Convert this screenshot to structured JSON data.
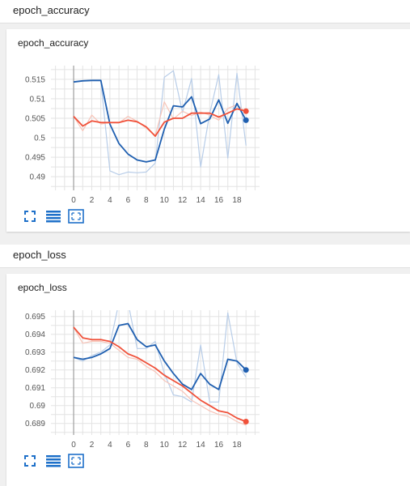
{
  "sections": [
    {
      "header": "epoch_accuracy",
      "card_title": "epoch_accuracy"
    },
    {
      "header": "epoch_loss",
      "card_title": "epoch_loss"
    }
  ],
  "colors": {
    "dark_blue": "#1f5fb0",
    "light_blue": "#b8cde8",
    "red": "#f0513a",
    "light_red": "#f7c4b8",
    "grid": "#e3e3e3",
    "toolbar_icon": "#1e70c9"
  },
  "toolbar_icons": [
    "fullscreen-icon",
    "data-table-icon",
    "fit-domain-icon"
  ],
  "chart_data": [
    {
      "type": "line",
      "title": "",
      "xlabel": "",
      "ylabel": "",
      "xlim": [
        -2.5,
        20.5
      ],
      "ylim": [
        0.4865,
        0.5185
      ],
      "x_ticks": [
        "0",
        "2",
        "4",
        "6",
        "8",
        "10",
        "12",
        "14",
        "16",
        "18"
      ],
      "y_ticks": [
        "0.515",
        "0.51",
        "0.505",
        "0.5",
        "0.495",
        "0.49"
      ],
      "grid": true,
      "series": [
        {
          "role": "smoothed",
          "x": [
            0,
            1,
            2,
            3,
            4,
            5,
            6,
            7,
            8,
            9,
            10,
            11,
            12,
            13,
            14,
            15,
            16,
            17,
            18,
            19
          ],
          "values": [
            0.5143,
            0.5146,
            0.5147,
            0.5147,
            0.5035,
            0.4985,
            0.4958,
            0.4943,
            0.4938,
            0.4943,
            0.5022,
            0.5082,
            0.5079,
            0.5105,
            0.5036,
            0.5048,
            0.5097,
            0.5037,
            0.5088,
            0.5045
          ]
        },
        {
          "role": "raw",
          "x": [
            0,
            1,
            2,
            3,
            4,
            5,
            6,
            7,
            8,
            9,
            10,
            11,
            12,
            13,
            14,
            15,
            16,
            17,
            18,
            19
          ],
          "values": [
            0.5143,
            0.5146,
            0.5147,
            0.5147,
            0.4915,
            0.4905,
            0.4912,
            0.491,
            0.4912,
            0.4935,
            0.5155,
            0.5172,
            0.5065,
            0.5152,
            0.4925,
            0.5062,
            0.5162,
            0.4948,
            0.5165,
            0.498
          ]
        },
        {
          "role": "smoothed",
          "x": [
            0,
            1,
            2,
            3,
            4,
            5,
            6,
            7,
            8,
            9,
            10,
            11,
            12,
            13,
            14,
            15,
            16,
            17,
            18,
            19
          ],
          "values": [
            0.5055,
            0.503,
            0.5043,
            0.5039,
            0.5039,
            0.5039,
            0.5045,
            0.5041,
            0.5028,
            0.5004,
            0.504,
            0.505,
            0.505,
            0.5063,
            0.5063,
            0.5063,
            0.5053,
            0.5063,
            0.5074,
            0.5068
          ]
        },
        {
          "role": "raw",
          "x": [
            0,
            1,
            2,
            3,
            4,
            5,
            6,
            7,
            8,
            9,
            10,
            11,
            12,
            13,
            14,
            15,
            16,
            17,
            18,
            19
          ],
          "values": [
            0.5055,
            0.5018,
            0.5058,
            0.5035,
            0.5039,
            0.5038,
            0.5055,
            0.5042,
            0.5025,
            0.5006,
            0.5092,
            0.5048,
            0.5068,
            0.5057,
            0.5066,
            0.5058,
            0.5045,
            0.5075,
            0.5085,
            0.5065
          ]
        }
      ]
    },
    {
      "type": "line",
      "title": "",
      "xlabel": "",
      "ylabel": "",
      "xlim": [
        -2.5,
        20.5
      ],
      "ylim": [
        0.68835,
        0.69535
      ],
      "x_ticks": [
        "0",
        "2",
        "4",
        "6",
        "8",
        "10",
        "12",
        "14",
        "16",
        "18"
      ],
      "y_ticks": [
        "0.695",
        "0.694",
        "0.693",
        "0.692",
        "0.691",
        "0.69",
        "0.689"
      ],
      "grid": true,
      "series": [
        {
          "role": "smoothed",
          "x": [
            0,
            1,
            2,
            3,
            4,
            5,
            6,
            7,
            8,
            9,
            10,
            11,
            12,
            13,
            14,
            15,
            16,
            17,
            18,
            19
          ],
          "values": [
            0.6927,
            0.6926,
            0.6927,
            0.6929,
            0.6932,
            0.6945,
            0.6946,
            0.6937,
            0.6933,
            0.6934,
            0.6925,
            0.6918,
            0.6912,
            0.6909,
            0.6918,
            0.6912,
            0.6909,
            0.6926,
            0.6925,
            0.692
          ]
        },
        {
          "role": "raw",
          "x": [
            0,
            1,
            2,
            3,
            4,
            5,
            6,
            7,
            8,
            9,
            10,
            11,
            12,
            13,
            14,
            15,
            16,
            17,
            18,
            19
          ],
          "values": [
            0.6927,
            0.6925,
            0.6928,
            0.693,
            0.6934,
            0.6958,
            0.6958,
            0.6932,
            0.6932,
            0.6936,
            0.6918,
            0.6906,
            0.6905,
            0.6902,
            0.6934,
            0.6902,
            0.6902,
            0.6952,
            0.6924,
            0.6916
          ]
        },
        {
          "role": "smoothed",
          "x": [
            0,
            1,
            2,
            3,
            4,
            5,
            6,
            7,
            8,
            9,
            10,
            11,
            12,
            13,
            14,
            15,
            16,
            17,
            18,
            19
          ],
          "values": [
            0.6944,
            0.6938,
            0.6937,
            0.6937,
            0.6936,
            0.6933,
            0.6929,
            0.6927,
            0.6924,
            0.6921,
            0.6917,
            0.6914,
            0.6911,
            0.6907,
            0.6903,
            0.69,
            0.6897,
            0.6896,
            0.6893,
            0.6891
          ]
        },
        {
          "role": "raw",
          "x": [
            0,
            1,
            2,
            3,
            4,
            5,
            6,
            7,
            8,
            9,
            10,
            11,
            12,
            13,
            14,
            15,
            16,
            17,
            18,
            19
          ],
          "values": [
            0.6944,
            0.6935,
            0.6936,
            0.6936,
            0.6935,
            0.6931,
            0.6927,
            0.6926,
            0.6922,
            0.6919,
            0.6914,
            0.6911,
            0.6908,
            0.6903,
            0.69,
            0.6897,
            0.6895,
            0.6894,
            0.6891,
            0.6889
          ]
        }
      ]
    }
  ]
}
